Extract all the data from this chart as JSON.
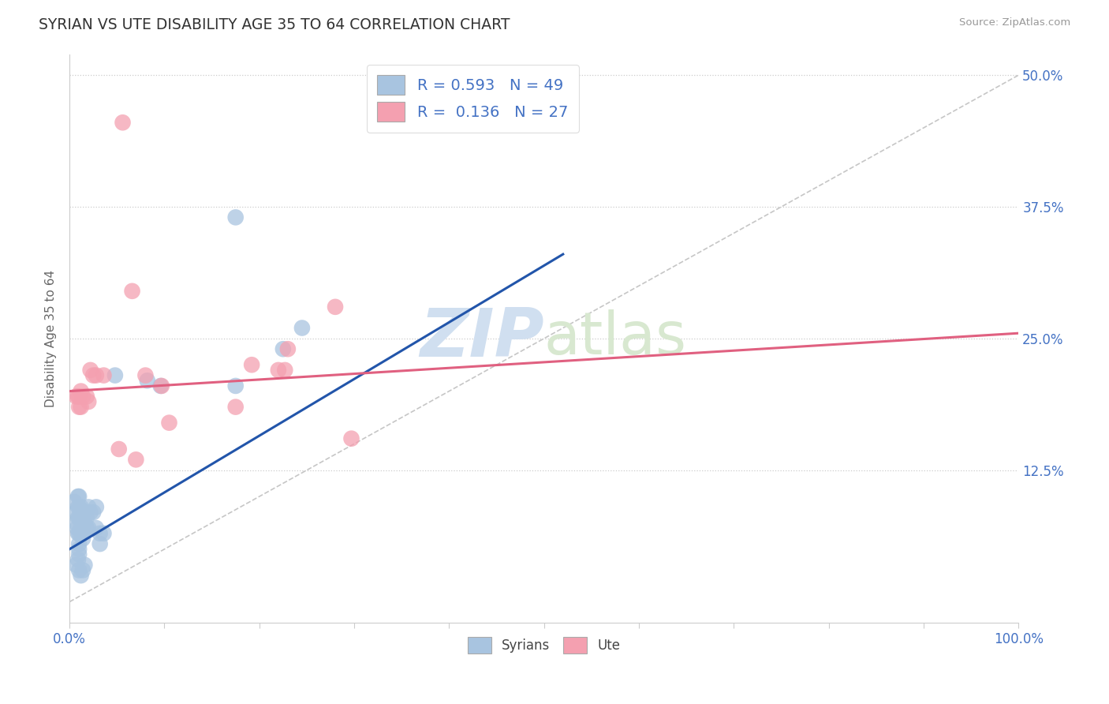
{
  "title": "SYRIAN VS UTE DISABILITY AGE 35 TO 64 CORRELATION CHART",
  "source": "Source: ZipAtlas.com",
  "ylabel": "Disability Age 35 to 64",
  "xlim": [
    0.0,
    1.0
  ],
  "ylim": [
    -0.02,
    0.52
  ],
  "yticks": [
    0.125,
    0.25,
    0.375,
    0.5
  ],
  "ytick_labels": [
    "12.5%",
    "25.0%",
    "37.5%",
    "50.0%"
  ],
  "syrian_color": "#a8c4e0",
  "ute_color": "#f4a0b0",
  "syrian_line_color": "#2255aa",
  "ute_line_color": "#e06080",
  "ref_line_color": "#b8b8b8",
  "watermark_color": "#d0dff0",
  "background_color": "#ffffff",
  "title_color": "#333333",
  "axis_label_color": "#4472c4",
  "syrian_scatter": [
    [
      0.005,
      0.095
    ],
    [
      0.007,
      0.085
    ],
    [
      0.007,
      0.075
    ],
    [
      0.008,
      0.07
    ],
    [
      0.009,
      0.1
    ],
    [
      0.009,
      0.09
    ],
    [
      0.009,
      0.08
    ],
    [
      0.009,
      0.065
    ],
    [
      0.01,
      0.1
    ],
    [
      0.01,
      0.09
    ],
    [
      0.01,
      0.08
    ],
    [
      0.01,
      0.065
    ],
    [
      0.01,
      0.055
    ],
    [
      0.01,
      0.05
    ],
    [
      0.01,
      0.045
    ],
    [
      0.012,
      0.09
    ],
    [
      0.012,
      0.08
    ],
    [
      0.012,
      0.07
    ],
    [
      0.012,
      0.065
    ],
    [
      0.014,
      0.085
    ],
    [
      0.014,
      0.075
    ],
    [
      0.014,
      0.065
    ],
    [
      0.014,
      0.06
    ],
    [
      0.016,
      0.085
    ],
    [
      0.016,
      0.075
    ],
    [
      0.018,
      0.08
    ],
    [
      0.018,
      0.07
    ],
    [
      0.02,
      0.09
    ],
    [
      0.02,
      0.07
    ],
    [
      0.022,
      0.085
    ],
    [
      0.025,
      0.085
    ],
    [
      0.028,
      0.09
    ],
    [
      0.028,
      0.07
    ],
    [
      0.032,
      0.065
    ],
    [
      0.032,
      0.055
    ],
    [
      0.036,
      0.065
    ],
    [
      0.007,
      0.035
    ],
    [
      0.009,
      0.04
    ],
    [
      0.01,
      0.03
    ],
    [
      0.012,
      0.025
    ],
    [
      0.014,
      0.03
    ],
    [
      0.016,
      0.035
    ],
    [
      0.175,
      0.365
    ],
    [
      0.082,
      0.21
    ],
    [
      0.048,
      0.215
    ],
    [
      0.096,
      0.205
    ],
    [
      0.175,
      0.205
    ],
    [
      0.245,
      0.26
    ],
    [
      0.225,
      0.24
    ]
  ],
  "ute_scatter": [
    [
      0.007,
      0.195
    ],
    [
      0.009,
      0.195
    ],
    [
      0.01,
      0.195
    ],
    [
      0.01,
      0.185
    ],
    [
      0.012,
      0.2
    ],
    [
      0.012,
      0.185
    ],
    [
      0.014,
      0.195
    ],
    [
      0.018,
      0.195
    ],
    [
      0.02,
      0.19
    ],
    [
      0.022,
      0.22
    ],
    [
      0.025,
      0.215
    ],
    [
      0.028,
      0.215
    ],
    [
      0.036,
      0.215
    ],
    [
      0.052,
      0.145
    ],
    [
      0.066,
      0.295
    ],
    [
      0.07,
      0.135
    ],
    [
      0.08,
      0.215
    ],
    [
      0.097,
      0.205
    ],
    [
      0.105,
      0.17
    ],
    [
      0.175,
      0.185
    ],
    [
      0.192,
      0.225
    ],
    [
      0.22,
      0.22
    ],
    [
      0.227,
      0.22
    ],
    [
      0.23,
      0.24
    ],
    [
      0.28,
      0.28
    ],
    [
      0.297,
      0.155
    ],
    [
      0.056,
      0.455
    ]
  ],
  "syrian_trend_x": [
    0.0,
    0.52
  ],
  "syrian_trend_y": [
    0.05,
    0.33
  ],
  "ute_trend_x": [
    0.0,
    1.0
  ],
  "ute_trend_y": [
    0.2,
    0.255
  ]
}
